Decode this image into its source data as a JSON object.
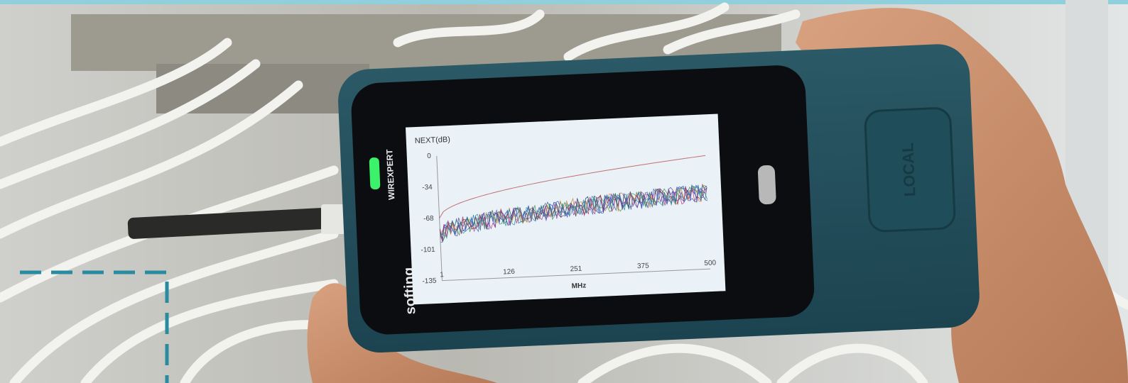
{
  "device": {
    "brand": "softing",
    "model": "WIREXPERT",
    "button_label": "LOCAL"
  },
  "screen": {
    "y_label": "NEXT(dB)",
    "yticks": [
      0,
      -34,
      -68,
      -101,
      -135
    ],
    "xticks": [
      1,
      126,
      251,
      375,
      500
    ],
    "x_label": "MHz"
  }
}
